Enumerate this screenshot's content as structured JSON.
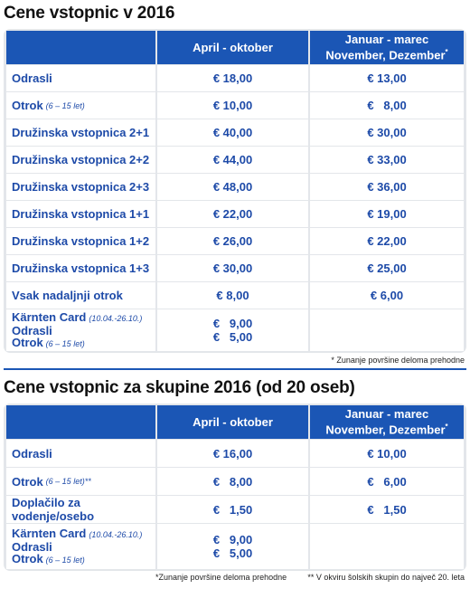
{
  "table1": {
    "title": "Cene vstopnic v 2016",
    "header": {
      "col2": "April - oktober",
      "col3_line1": "Januar - marec",
      "col3_line2": "November, Dezember",
      "col3_mark": "*"
    },
    "rows": [
      {
        "label": "Odrasli",
        "note": "",
        "col2": "€ 18,00",
        "col3": "€ 13,00"
      },
      {
        "label": "Otrok",
        "note": "(6 – 15 let)",
        "col2": "€ 10,00",
        "col3": "€   8,00"
      },
      {
        "label": "Družinska vstopnica 2+1",
        "note": "",
        "col2": "€ 40,00",
        "col3": "€ 30,00"
      },
      {
        "label": "Družinska vstopnica 2+2",
        "note": "",
        "col2": "€ 44,00",
        "col3": "€ 33,00"
      },
      {
        "label": "Družinska vstopnica 2+3",
        "note": "",
        "col2": "€ 48,00",
        "col3": "€ 36,00"
      },
      {
        "label": "Družinska vstopnica 1+1",
        "note": "",
        "col2": "€ 22,00",
        "col3": "€ 19,00"
      },
      {
        "label": "Družinska vstopnica 1+2",
        "note": "",
        "col2": "€ 26,00",
        "col3": "€ 22,00"
      },
      {
        "label": "Družinska vstopnica 1+3",
        "note": "",
        "col2": "€ 30,00",
        "col3": "€ 25,00"
      },
      {
        "label": "Vsak nadaljnji otrok",
        "note": "",
        "col2": "€ 8,00",
        "col3": "€ 6,00"
      }
    ],
    "card": {
      "label": "Kärnten Card",
      "label_note": "(10.04.-26.10.)",
      "adults": "Odrasli",
      "child": "Otrok",
      "child_note": "(6 – 15 let)",
      "price_adults": "€   9,00",
      "price_child": "€   5,00"
    },
    "footnote": "* Zunanje površine deloma prehodne"
  },
  "table2": {
    "title": "Cene vstopnic za skupine 2016 (od 20 oseb)",
    "header": {
      "col2": "April - oktober",
      "col3_line1": "Januar - marec",
      "col3_line2": "November, Dezember",
      "col3_mark": "*"
    },
    "rows": [
      {
        "label": "Odrasli",
        "note": "",
        "col2": "€ 16,00",
        "col3": "€ 10,00"
      },
      {
        "label": "Otrok",
        "note": "(6 – 15 let)**",
        "col2": "€   8,00",
        "col3": "€   6,00"
      },
      {
        "label": "Doplačilo za vodenje/osebo",
        "note": "",
        "col2": "€   1,50",
        "col3": "€   1,50"
      }
    ],
    "card": {
      "label": "Kärnten Card",
      "label_note": "(10.04.-26.10.)",
      "adults": "Odrasli",
      "child": "Otrok",
      "child_note": "(6 – 15 let)",
      "price_adults": "€   9,00",
      "price_child": "€   5,00"
    },
    "footnote_left": "*Zunanje površine deloma prehodne",
    "footnote_right": "** V okviru šolskih skupin do največ 20. leta"
  }
}
